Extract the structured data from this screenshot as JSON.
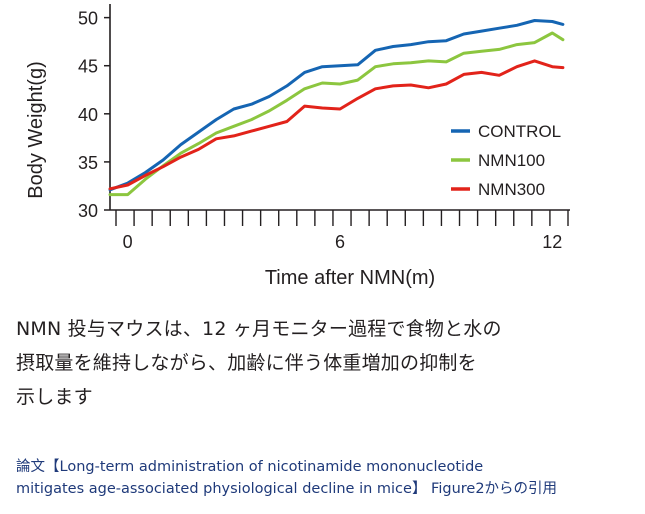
{
  "chart_data": {
    "type": "line",
    "xlabel": "Time after NMN(m)",
    "ylabel": "Body Weight(g)",
    "xlim": [
      -0.5,
      12.5
    ],
    "ylim": [
      30,
      51
    ],
    "xticks": [
      0,
      6,
      12
    ],
    "yticks": [
      30,
      35,
      40,
      45,
      50
    ],
    "legend_position": "right",
    "series": [
      {
        "name": "CONTROL",
        "color": "#1565b3",
        "x": [
          -0.5,
          0,
          0.5,
          1,
          1.5,
          2,
          2.5,
          3,
          3.5,
          4,
          4.5,
          5,
          5.5,
          6,
          6.5,
          7,
          7.5,
          8,
          8.5,
          9,
          9.5,
          10,
          10.5,
          11,
          11.5,
          12,
          12.3
        ],
        "y": [
          32.1,
          32.8,
          33.9,
          35.2,
          36.8,
          38.1,
          39.4,
          40.5,
          41.0,
          41.8,
          42.9,
          44.3,
          44.9,
          45.0,
          45.1,
          46.6,
          47.0,
          47.2,
          47.5,
          47.6,
          48.3,
          48.6,
          48.9,
          49.2,
          49.7,
          49.6,
          49.3
        ]
      },
      {
        "name": "NMN100",
        "color": "#8cc63f",
        "x": [
          -0.5,
          0,
          0.5,
          1,
          1.5,
          2,
          2.5,
          3,
          3.5,
          4,
          4.5,
          5,
          5.5,
          6,
          6.5,
          7,
          7.5,
          8,
          8.5,
          9,
          9.5,
          10,
          10.5,
          11,
          11.5,
          12,
          12.3
        ],
        "y": [
          31.6,
          31.6,
          33.2,
          34.6,
          35.9,
          36.9,
          38.0,
          38.7,
          39.4,
          40.3,
          41.4,
          42.6,
          43.2,
          43.1,
          43.5,
          44.9,
          45.2,
          45.3,
          45.5,
          45.4,
          46.3,
          46.5,
          46.7,
          47.2,
          47.4,
          48.4,
          47.7
        ]
      },
      {
        "name": "NMN300",
        "color": "#e2231a",
        "x": [
          -0.5,
          0,
          0.5,
          1,
          1.5,
          2,
          2.5,
          3,
          3.5,
          4,
          4.5,
          5,
          5.5,
          6,
          6.5,
          7,
          7.5,
          8,
          8.5,
          9,
          9.5,
          10,
          10.5,
          11,
          11.5,
          12,
          12.3
        ],
        "y": [
          32.2,
          32.6,
          33.6,
          34.5,
          35.5,
          36.3,
          37.4,
          37.7,
          38.2,
          38.7,
          39.2,
          40.8,
          40.6,
          40.5,
          41.6,
          42.6,
          42.9,
          43.0,
          42.7,
          43.1,
          44.1,
          44.3,
          44.0,
          44.9,
          45.5,
          44.9,
          44.8
        ]
      }
    ]
  },
  "caption": {
    "line1": "NMN 投与マウスは、12 ヶ月モニター過程で食物と水の",
    "line2": "摂取量を維持しながら、加齢に伴う体重増加の抑制を",
    "line3": "示します"
  },
  "source": {
    "line1": "論文【Long-term administration of nicotinamide mononucleotide",
    "line2": "mitigates age-associated physiological decline in mice】 Figure2からの引用"
  }
}
